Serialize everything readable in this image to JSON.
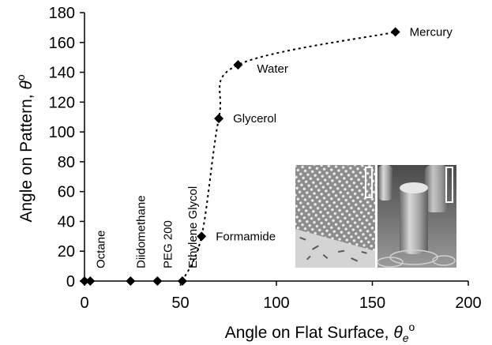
{
  "chart_data": {
    "type": "scatter",
    "title": "",
    "xlabel": {
      "main": "Angle on Flat Surface, ",
      "symbol": "θ",
      "subscript": "e",
      "superscript": "o"
    },
    "ylabel": {
      "main": "Angle on Pattern, ",
      "symbol": "θ",
      "superscript": "o"
    },
    "xlim": [
      0,
      200
    ],
    "ylim": [
      0,
      180
    ],
    "x_ticks": [
      "0",
      "50",
      "100",
      "150",
      "200"
    ],
    "y_ticks": [
      "0",
      "20",
      "40",
      "60",
      "80",
      "100",
      "120",
      "140",
      "160",
      "180"
    ],
    "grid": false,
    "legend": "none",
    "series": [
      {
        "line_style": "dotted",
        "marker": "diamond",
        "color": "#000000",
        "points": [
          {
            "x": 0,
            "y": 0,
            "label": ""
          },
          {
            "x": 3,
            "y": 0,
            "label": "Octane"
          },
          {
            "x": 24,
            "y": 0,
            "label": "Diidomethane"
          },
          {
            "x": 38,
            "y": 0,
            "label": "PEG 200"
          },
          {
            "x": 51,
            "y": 0,
            "label": "Ethylene Glycol"
          },
          {
            "x": 61,
            "y": 30,
            "label": "Formamide"
          },
          {
            "x": 70,
            "y": 109,
            "label": "Glycerol"
          },
          {
            "x": 80,
            "y": 145,
            "label": "Water"
          },
          {
            "x": 162,
            "y": 167,
            "label": "Mercury"
          }
        ]
      }
    ],
    "inset": "SEM micrographs of micropillar array"
  }
}
